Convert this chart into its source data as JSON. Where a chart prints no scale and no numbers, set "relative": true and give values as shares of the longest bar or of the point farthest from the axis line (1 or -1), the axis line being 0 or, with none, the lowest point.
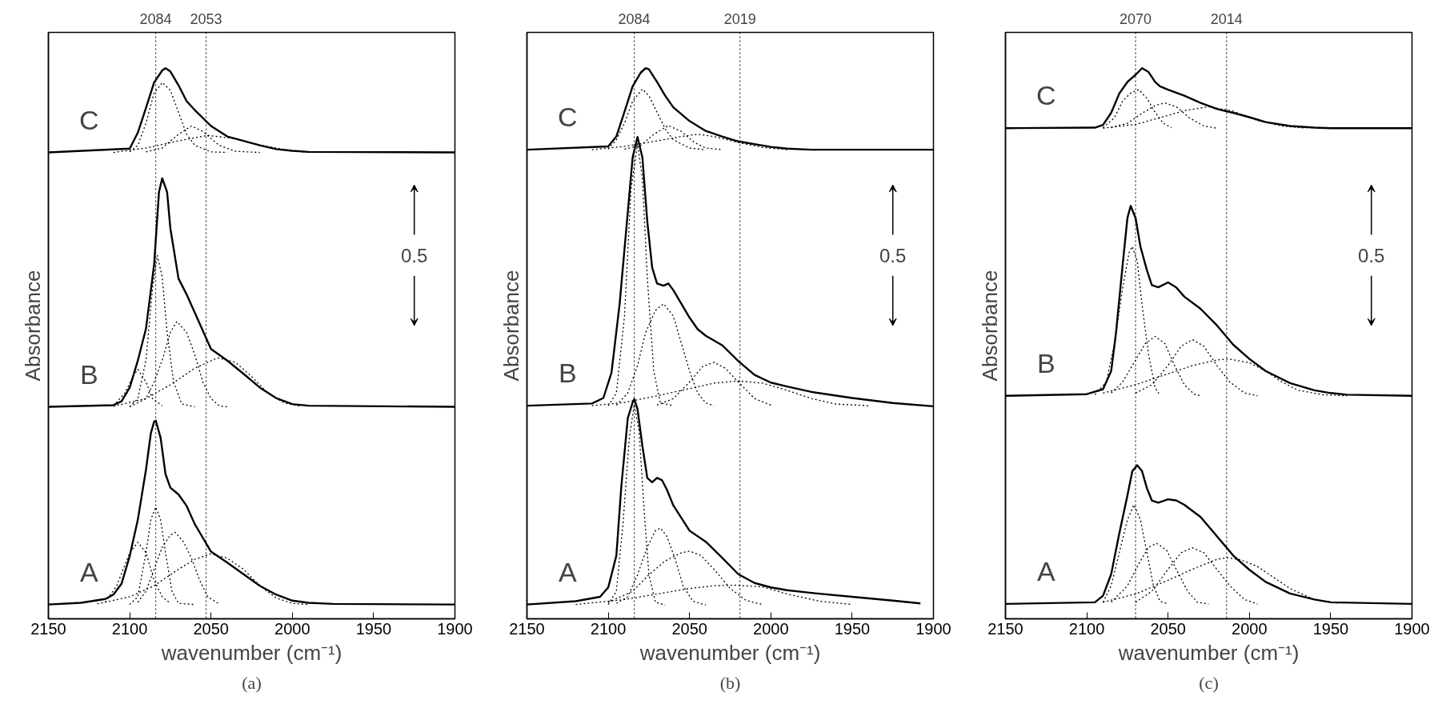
{
  "chart_data": [
    {
      "type": "line",
      "relative": true,
      "subtitle": "(a)",
      "xlabel": "wavenumber (cm⁻¹)",
      "ylabel": "Absorbance",
      "xlim": [
        2150,
        1900
      ],
      "xticks": [
        2150,
        2100,
        2050,
        2000,
        1950,
        1900
      ],
      "tick_labels": "x",
      "grid": false,
      "annotations": [
        "0.5"
      ],
      "ref_lines": [
        {
          "axis": "x",
          "value": 2084,
          "label": "2084",
          "line_style": "dotted",
          "color": "#000000"
        },
        {
          "axis": "x",
          "value": 2053,
          "label": "2053",
          "line_style": "dotted",
          "color": "#000000"
        }
      ],
      "series": [
        {
          "name": "C",
          "color": "#000000",
          "line_style": "solid",
          "x": [
            2150,
            2100,
            2095,
            2090,
            2085,
            2080,
            2078,
            2075,
            2070,
            2065,
            2060,
            2050,
            2040,
            2030,
            2020,
            2010,
            2000,
            1990,
            1900
          ],
          "values": [
            0.847,
            0.854,
            0.883,
            0.928,
            0.974,
            0.996,
            1.0,
            0.994,
            0.969,
            0.94,
            0.924,
            0.895,
            0.876,
            0.868,
            0.86,
            0.853,
            0.85,
            0.848,
            0.847
          ]
        },
        {
          "color": "#000000",
          "line_style": "dotted",
          "x": [
            2100,
            2095,
            2090,
            2085,
            2080,
            2075,
            2070,
            2065,
            2060,
            2050,
            2040
          ],
          "values": [
            0.848,
            0.86,
            0.9,
            0.955,
            0.974,
            0.96,
            0.92,
            0.88,
            0.86,
            0.848,
            0.847
          ]
        },
        {
          "color": "#000000",
          "line_style": "dotted",
          "x": [
            2090,
            2080,
            2070,
            2062,
            2055,
            2045,
            2035,
            2020
          ],
          "values": [
            0.848,
            0.855,
            0.88,
            0.895,
            0.885,
            0.86,
            0.849,
            0.847
          ]
        },
        {
          "color": "#000000",
          "line_style": "dotted",
          "x": [
            2110,
            2090,
            2070,
            2052,
            2035,
            2020,
            2000,
            1990
          ],
          "values": [
            0.847,
            0.855,
            0.868,
            0.878,
            0.872,
            0.86,
            0.85,
            0.847
          ]
        },
        {
          "name": "B",
          "color": "#000000",
          "line_style": "solid",
          "x": [
            2150,
            2110,
            2105,
            2100,
            2095,
            2090,
            2085,
            2082,
            2080,
            2077,
            2075,
            2070,
            2065,
            2060,
            2050,
            2040,
            2030,
            2020,
            2010,
            2000,
            1990,
            1900
          ],
          "values": [
            0.385,
            0.388,
            0.395,
            0.42,
            0.469,
            0.527,
            0.643,
            0.775,
            0.8,
            0.775,
            0.709,
            0.618,
            0.589,
            0.556,
            0.49,
            0.469,
            0.445,
            0.42,
            0.401,
            0.39,
            0.387,
            0.385
          ]
        },
        {
          "color": "#000000",
          "line_style": "dotted",
          "x": [
            2100,
            2095,
            2090,
            2086,
            2083,
            2080,
            2077,
            2073,
            2068,
            2060
          ],
          "values": [
            0.385,
            0.4,
            0.47,
            0.6,
            0.66,
            0.62,
            0.52,
            0.43,
            0.39,
            0.385
          ]
        },
        {
          "color": "#000000",
          "line_style": "dotted",
          "x": [
            2100,
            2090,
            2085,
            2080,
            2075,
            2071,
            2065,
            2060,
            2055,
            2050,
            2045,
            2040
          ],
          "values": [
            0.385,
            0.4,
            0.43,
            0.47,
            0.52,
            0.54,
            0.52,
            0.48,
            0.43,
            0.4,
            0.387,
            0.385
          ]
        },
        {
          "color": "#000000",
          "line_style": "dotted",
          "x": [
            2110,
            2103,
            2098,
            2095,
            2090,
            2086,
            2080
          ],
          "values": [
            0.387,
            0.41,
            0.44,
            0.453,
            0.43,
            0.4,
            0.387
          ]
        },
        {
          "color": "#000000",
          "line_style": "dotted",
          "x": [
            2110,
            2090,
            2075,
            2060,
            2046,
            2035,
            2025,
            2015,
            2005,
            1995
          ],
          "values": [
            0.386,
            0.4,
            0.425,
            0.455,
            0.474,
            0.466,
            0.44,
            0.41,
            0.392,
            0.386
          ]
        },
        {
          "name": "A",
          "color": "#000000",
          "line_style": "solid",
          "x": [
            2150,
            2130,
            2115,
            2110,
            2105,
            2100,
            2095,
            2090,
            2087,
            2085,
            2084,
            2081,
            2078,
            2075,
            2070,
            2065,
            2060,
            2050,
            2040,
            2030,
            2020,
            2010,
            2000,
            1990,
            1975,
            1900
          ],
          "values": [
            0.026,
            0.029,
            0.036,
            0.044,
            0.064,
            0.114,
            0.18,
            0.271,
            0.337,
            0.358,
            0.36,
            0.329,
            0.263,
            0.238,
            0.226,
            0.205,
            0.172,
            0.122,
            0.102,
            0.081,
            0.06,
            0.044,
            0.033,
            0.029,
            0.027,
            0.026
          ]
        },
        {
          "color": "#000000",
          "line_style": "dotted",
          "x": [
            2100,
            2095,
            2090,
            2087,
            2084,
            2081,
            2078,
            2074,
            2070,
            2060
          ],
          "values": [
            0.026,
            0.04,
            0.12,
            0.18,
            0.203,
            0.18,
            0.12,
            0.05,
            0.028,
            0.026
          ]
        },
        {
          "color": "#000000",
          "line_style": "dotted",
          "x": [
            2095,
            2090,
            2085,
            2080,
            2075,
            2072,
            2067,
            2062,
            2057,
            2052,
            2045
          ],
          "values": [
            0.03,
            0.05,
            0.09,
            0.13,
            0.152,
            0.157,
            0.14,
            0.11,
            0.07,
            0.04,
            0.027
          ]
        },
        {
          "color": "#000000",
          "line_style": "dotted",
          "x": [
            2115,
            2108,
            2100,
            2095,
            2090,
            2085,
            2080,
            2075
          ],
          "values": [
            0.03,
            0.06,
            0.12,
            0.139,
            0.12,
            0.07,
            0.04,
            0.028
          ]
        },
        {
          "color": "#000000",
          "line_style": "dotted",
          "x": [
            2120,
            2100,
            2085,
            2070,
            2060,
            2050,
            2040,
            2030,
            2020,
            2010,
            2000,
            1990
          ],
          "values": [
            0.027,
            0.04,
            0.06,
            0.09,
            0.108,
            0.118,
            0.11,
            0.09,
            0.06,
            0.038,
            0.028,
            0.026
          ]
        }
      ]
    },
    {
      "type": "line",
      "relative": true,
      "subtitle": "(b)",
      "xlabel": "wavenumber (cm⁻¹)",
      "ylabel": "Absorbance",
      "xlim": [
        2150,
        1900
      ],
      "xticks": [
        2150,
        2100,
        2050,
        2000,
        1950,
        1900
      ],
      "tick_labels": "x",
      "grid": false,
      "annotations": [
        "0.5"
      ],
      "ref_lines": [
        {
          "axis": "x",
          "value": 2084,
          "label": "2084",
          "line_style": "dotted",
          "color": "#000000"
        },
        {
          "axis": "x",
          "value": 2019,
          "label": "2019",
          "line_style": "dotted",
          "color": "#000000"
        }
      ],
      "series": [
        {
          "name": "C",
          "color": "#000000",
          "line_style": "solid",
          "x": [
            2150,
            2100,
            2095,
            2090,
            2085,
            2080,
            2077,
            2075,
            2070,
            2065,
            2060,
            2050,
            2040,
            2030,
            2020,
            2010,
            2000,
            1990,
            1975,
            1900
          ],
          "values": [
            0.852,
            0.858,
            0.876,
            0.921,
            0.967,
            0.992,
            1.0,
            0.998,
            0.975,
            0.95,
            0.929,
            0.904,
            0.886,
            0.876,
            0.867,
            0.862,
            0.857,
            0.854,
            0.852,
            0.852
          ]
        },
        {
          "color": "#000000",
          "line_style": "dotted",
          "x": [
            2100,
            2095,
            2090,
            2085,
            2079,
            2075,
            2070,
            2065,
            2060,
            2050,
            2040
          ],
          "values": [
            0.853,
            0.87,
            0.9,
            0.94,
            0.962,
            0.95,
            0.92,
            0.89,
            0.87,
            0.855,
            0.852
          ]
        },
        {
          "color": "#000000",
          "line_style": "dotted",
          "x": [
            2090,
            2080,
            2072,
            2063,
            2055,
            2047,
            2040,
            2030
          ],
          "values": [
            0.853,
            0.86,
            0.88,
            0.896,
            0.885,
            0.865,
            0.855,
            0.852
          ]
        },
        {
          "color": "#000000",
          "line_style": "dotted",
          "x": [
            2110,
            2090,
            2070,
            2055,
            2045,
            2035,
            2020,
            2005,
            1990
          ],
          "values": [
            0.852,
            0.858,
            0.868,
            0.876,
            0.88,
            0.876,
            0.865,
            0.856,
            0.852
          ]
        },
        {
          "name": "B",
          "color": "#000000",
          "line_style": "solid",
          "x": [
            2150,
            2110,
            2103,
            2098,
            2093,
            2088,
            2085,
            2082,
            2079,
            2076,
            2073,
            2070,
            2066,
            2063,
            2060,
            2055,
            2050,
            2045,
            2040,
            2030,
            2020,
            2010,
            2000,
            1990,
            1975,
            1950,
            1925,
            1900
          ],
          "values": [
            0.387,
            0.391,
            0.401,
            0.447,
            0.572,
            0.738,
            0.838,
            0.875,
            0.838,
            0.722,
            0.638,
            0.609,
            0.605,
            0.609,
            0.597,
            0.572,
            0.547,
            0.526,
            0.514,
            0.497,
            0.468,
            0.443,
            0.429,
            0.422,
            0.412,
            0.401,
            0.392,
            0.386
          ]
        },
        {
          "color": "#000000",
          "line_style": "dotted",
          "x": [
            2100,
            2095,
            2090,
            2086,
            2082,
            2079,
            2076,
            2072,
            2068,
            2060
          ],
          "values": [
            0.387,
            0.41,
            0.55,
            0.78,
            0.863,
            0.8,
            0.62,
            0.45,
            0.392,
            0.387
          ]
        },
        {
          "color": "#000000",
          "line_style": "dotted",
          "x": [
            2095,
            2088,
            2082,
            2077,
            2071,
            2066,
            2060,
            2055,
            2050,
            2045,
            2040,
            2035
          ],
          "values": [
            0.388,
            0.41,
            0.46,
            0.52,
            0.56,
            0.572,
            0.55,
            0.5,
            0.45,
            0.41,
            0.392,
            0.387
          ]
        },
        {
          "color": "#000000",
          "line_style": "dotted",
          "x": [
            2070,
            2060,
            2050,
            2042,
            2035,
            2028,
            2020,
            2010,
            2000
          ],
          "values": [
            0.388,
            0.4,
            0.43,
            0.458,
            0.466,
            0.455,
            0.43,
            0.4,
            0.388
          ]
        },
        {
          "color": "#000000",
          "line_style": "dotted",
          "x": [
            2110,
            2090,
            2070,
            2050,
            2035,
            2020,
            2005,
            1990,
            1975,
            1960,
            1940
          ],
          "values": [
            0.387,
            0.393,
            0.405,
            0.418,
            0.428,
            0.432,
            0.428,
            0.415,
            0.4,
            0.39,
            0.387
          ]
        },
        {
          "name": "A",
          "color": "#000000",
          "line_style": "solid",
          "x": [
            2150,
            2120,
            2105,
            2100,
            2095,
            2092,
            2088,
            2085,
            2084,
            2082,
            2079,
            2076,
            2073,
            2070,
            2067,
            2064,
            2060,
            2050,
            2040,
            2030,
            2020,
            2010,
            2000,
            1990,
            1975,
            1950,
            1925,
            1908
          ],
          "values": [
            0.026,
            0.032,
            0.04,
            0.057,
            0.115,
            0.239,
            0.364,
            0.393,
            0.399,
            0.381,
            0.314,
            0.256,
            0.248,
            0.256,
            0.252,
            0.235,
            0.206,
            0.16,
            0.14,
            0.111,
            0.081,
            0.065,
            0.057,
            0.052,
            0.047,
            0.04,
            0.033,
            0.028
          ]
        },
        {
          "color": "#000000",
          "line_style": "dotted",
          "x": [
            2100,
            2095,
            2091,
            2087,
            2084,
            2081,
            2078,
            2075,
            2071,
            2065
          ],
          "values": [
            0.026,
            0.05,
            0.17,
            0.33,
            0.389,
            0.34,
            0.2,
            0.08,
            0.03,
            0.025
          ]
        },
        {
          "color": "#000000",
          "line_style": "dotted",
          "x": [
            2095,
            2088,
            2082,
            2076,
            2071,
            2068,
            2064,
            2059,
            2054,
            2048,
            2040
          ],
          "values": [
            0.028,
            0.04,
            0.08,
            0.13,
            0.16,
            0.165,
            0.15,
            0.11,
            0.06,
            0.032,
            0.025
          ]
        },
        {
          "color": "#000000",
          "line_style": "dotted",
          "x": [
            2100,
            2085,
            2075,
            2065,
            2055,
            2050,
            2043,
            2035,
            2025,
            2015,
            2005
          ],
          "values": [
            0.03,
            0.05,
            0.08,
            0.105,
            0.12,
            0.123,
            0.115,
            0.09,
            0.055,
            0.033,
            0.026
          ]
        },
        {
          "color": "#000000",
          "line_style": "dotted",
          "x": [
            2120,
            2090,
            2070,
            2050,
            2035,
            2022,
            2005,
            1990,
            1970,
            1950
          ],
          "values": [
            0.026,
            0.035,
            0.045,
            0.055,
            0.06,
            0.061,
            0.058,
            0.045,
            0.032,
            0.026
          ]
        }
      ]
    },
    {
      "type": "line",
      "relative": true,
      "subtitle": "(c)",
      "xlabel": "wavenumber (cm⁻¹)",
      "ylabel": "Absorbance",
      "xlim": [
        2150,
        1900
      ],
      "xticks": [
        2150,
        2100,
        2050,
        2000,
        1950,
        1900
      ],
      "tick_labels": "x",
      "grid": false,
      "annotations": [
        "0.5"
      ],
      "ref_lines": [
        {
          "axis": "x",
          "value": 2070,
          "label": "2070",
          "line_style": "dotted",
          "color": "#000000"
        },
        {
          "axis": "x",
          "value": 2014,
          "label": "2014",
          "line_style": "dotted",
          "color": "#000000"
        }
      ],
      "series": [
        {
          "name": "C",
          "color": "#000000",
          "line_style": "solid",
          "x": [
            2150,
            2095,
            2090,
            2085,
            2080,
            2075,
            2070,
            2066,
            2062,
            2058,
            2055,
            2050,
            2040,
            2030,
            2020,
            2010,
            2000,
            1990,
            1975,
            1960,
            1950,
            1900
          ],
          "values": [
            0.891,
            0.892,
            0.897,
            0.919,
            0.954,
            0.975,
            0.988,
            1.0,
            0.993,
            0.975,
            0.967,
            0.961,
            0.95,
            0.937,
            0.926,
            0.919,
            0.911,
            0.902,
            0.895,
            0.892,
            0.891,
            0.891
          ]
        },
        {
          "color": "#000000",
          "line_style": "dotted",
          "x": [
            2090,
            2083,
            2078,
            2073,
            2068,
            2063,
            2058,
            2053,
            2048
          ],
          "values": [
            0.892,
            0.91,
            0.94,
            0.955,
            0.961,
            0.945,
            0.92,
            0.9,
            0.892
          ]
        },
        {
          "color": "#000000",
          "line_style": "dotted",
          "x": [
            2085,
            2075,
            2065,
            2058,
            2052,
            2045,
            2037,
            2028,
            2020
          ],
          "values": [
            0.892,
            0.9,
            0.92,
            0.932,
            0.937,
            0.93,
            0.91,
            0.895,
            0.891
          ]
        },
        {
          "color": "#000000",
          "line_style": "dotted",
          "x": [
            2090,
            2070,
            2055,
            2040,
            2025,
            2010,
            1995,
            1980,
            1965
          ],
          "values": [
            0.891,
            0.898,
            0.91,
            0.923,
            0.93,
            0.922,
            0.905,
            0.895,
            0.891
          ]
        },
        {
          "name": "B",
          "color": "#000000",
          "line_style": "solid",
          "x": [
            2150,
            2100,
            2090,
            2085,
            2082,
            2078,
            2075,
            2073,
            2070,
            2067,
            2063,
            2060,
            2056,
            2050,
            2045,
            2040,
            2030,
            2020,
            2010,
            2000,
            1990,
            1975,
            1960,
            1950,
            1940,
            1900
          ],
          "values": [
            0.405,
            0.408,
            0.417,
            0.45,
            0.52,
            0.641,
            0.728,
            0.75,
            0.728,
            0.676,
            0.633,
            0.606,
            0.602,
            0.611,
            0.602,
            0.585,
            0.563,
            0.533,
            0.498,
            0.472,
            0.45,
            0.428,
            0.415,
            0.41,
            0.407,
            0.405
          ]
        },
        {
          "color": "#000000",
          "line_style": "dotted",
          "x": [
            2095,
            2088,
            2083,
            2078,
            2074,
            2072,
            2069,
            2066,
            2062,
            2058,
            2055
          ],
          "values": [
            0.407,
            0.43,
            0.5,
            0.6,
            0.665,
            0.676,
            0.65,
            0.57,
            0.48,
            0.42,
            0.406
          ]
        },
        {
          "color": "#000000",
          "line_style": "dotted",
          "x": [
            2085,
            2078,
            2070,
            2064,
            2058,
            2052,
            2046,
            2040,
            2034,
            2030
          ],
          "values": [
            0.41,
            0.43,
            0.47,
            0.5,
            0.513,
            0.5,
            0.46,
            0.425,
            0.408,
            0.405
          ]
        },
        {
          "color": "#000000",
          "line_style": "dotted",
          "x": [
            2070,
            2060,
            2050,
            2042,
            2035,
            2028,
            2020,
            2012,
            2003,
            1995
          ],
          "values": [
            0.41,
            0.425,
            0.46,
            0.495,
            0.507,
            0.495,
            0.46,
            0.43,
            0.41,
            0.405
          ]
        },
        {
          "color": "#000000",
          "line_style": "dotted",
          "x": [
            2090,
            2070,
            2050,
            2035,
            2020,
            2013,
            2000,
            1990,
            1980,
            1970,
            1955,
            1940
          ],
          "values": [
            0.41,
            0.425,
            0.445,
            0.46,
            0.47,
            0.472,
            0.465,
            0.45,
            0.43,
            0.415,
            0.407,
            0.405
          ]
        },
        {
          "name": "A",
          "color": "#000000",
          "line_style": "solid",
          "x": [
            2150,
            2095,
            2090,
            2085,
            2080,
            2075,
            2072,
            2069,
            2066,
            2063,
            2060,
            2056,
            2050,
            2045,
            2040,
            2030,
            2020,
            2010,
            2000,
            1990,
            1975,
            1960,
            1950,
            1900
          ],
          "values": [
            0.027,
            0.03,
            0.042,
            0.081,
            0.155,
            0.224,
            0.268,
            0.279,
            0.268,
            0.237,
            0.215,
            0.211,
            0.217,
            0.215,
            0.207,
            0.185,
            0.15,
            0.115,
            0.089,
            0.067,
            0.046,
            0.035,
            0.03,
            0.027
          ]
        },
        {
          "color": "#000000",
          "line_style": "dotted",
          "x": [
            2090,
            2085,
            2080,
            2075,
            2071,
            2067,
            2063,
            2059,
            2055,
            2050
          ],
          "values": [
            0.03,
            0.06,
            0.12,
            0.18,
            0.207,
            0.18,
            0.12,
            0.06,
            0.032,
            0.027
          ]
        },
        {
          "color": "#000000",
          "line_style": "dotted",
          "x": [
            2085,
            2075,
            2068,
            2062,
            2057,
            2051,
            2045,
            2038,
            2032,
            2025
          ],
          "values": [
            0.03,
            0.06,
            0.1,
            0.13,
            0.137,
            0.125,
            0.09,
            0.05,
            0.03,
            0.027
          ]
        },
        {
          "color": "#000000",
          "line_style": "dotted",
          "x": [
            2070,
            2060,
            2050,
            2042,
            2035,
            2028,
            2020,
            2012,
            2003,
            1995
          ],
          "values": [
            0.03,
            0.05,
            0.09,
            0.12,
            0.129,
            0.12,
            0.09,
            0.06,
            0.035,
            0.027
          ]
        },
        {
          "color": "#000000",
          "line_style": "dotted",
          "x": [
            2090,
            2070,
            2050,
            2035,
            2020,
            2014,
            2005,
            1995,
            1985,
            1975,
            1960,
            1945
          ],
          "values": [
            0.03,
            0.045,
            0.07,
            0.09,
            0.108,
            0.111,
            0.107,
            0.095,
            0.075,
            0.055,
            0.035,
            0.028
          ]
        }
      ]
    }
  ]
}
